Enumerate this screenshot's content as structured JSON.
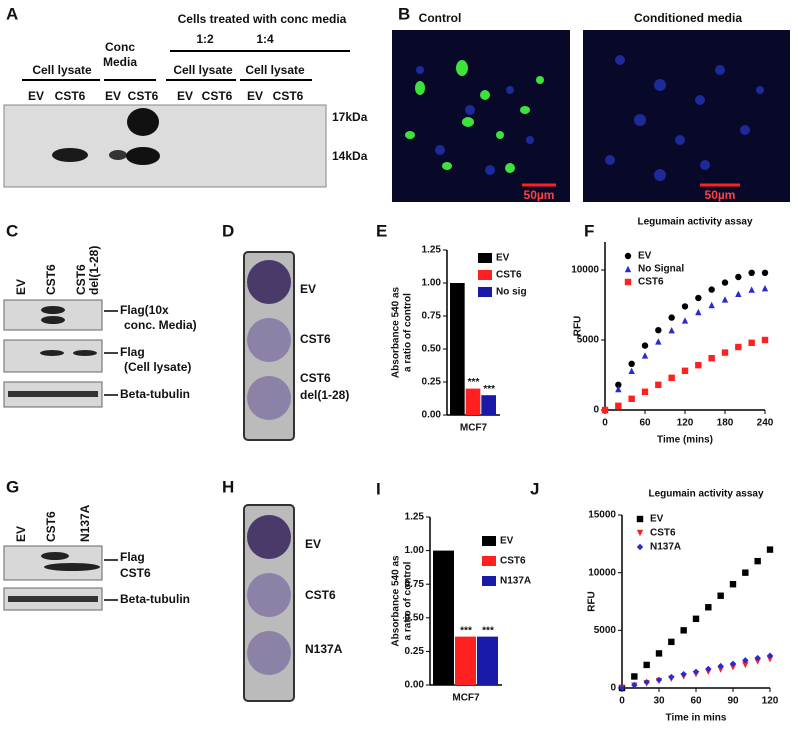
{
  "figure": {
    "a": {
      "label": "A",
      "header": "Cells treated with conc  media",
      "ratios": [
        "1:2",
        "1:4"
      ],
      "groups": [
        "Cell lysate",
        [
          "Conc",
          "Media"
        ],
        "Cell lysate",
        "Cell lysate"
      ],
      "lanes": [
        "EV",
        "CST6",
        "EV",
        "CST6",
        "EV",
        "CST6",
        "EV",
        "CST6"
      ],
      "markers": [
        "17kDa",
        "14kDa"
      ]
    },
    "b": {
      "label": "B",
      "panels": [
        "Control",
        "Conditioned media"
      ],
      "scale": [
        "50µm",
        "50µm"
      ]
    },
    "c": {
      "label": "C",
      "lanes": [
        [
          "EV"
        ],
        [
          "CST6"
        ],
        [
          "CST6",
          "del(1-28)"
        ]
      ],
      "rows": [
        [
          "Flag(10x",
          "conc. Media)"
        ],
        [
          "Flag",
          "(Cell lysate)"
        ],
        [
          "Beta-tubulin"
        ]
      ]
    },
    "d": {
      "label": "D",
      "wells": [
        [
          "EV"
        ],
        [
          "CST6"
        ],
        [
          "CST6",
          "del(1-28)"
        ]
      ]
    },
    "e": {
      "label": "E"
    },
    "f": {
      "label": "F"
    },
    "g": {
      "label": "G",
      "lanes": [
        "EV",
        "CST6",
        "N137A"
      ],
      "rows": [
        [
          "Flag",
          "CST6"
        ],
        [
          "Beta-tubulin"
        ]
      ]
    },
    "h": {
      "label": "H",
      "wells": [
        "EV",
        "CST6",
        "N137A"
      ]
    },
    "i": {
      "label": "I"
    },
    "j": {
      "label": "J"
    }
  },
  "chart_data": [
    {
      "type": "bar",
      "ylabel": [
        "Absorbance 540 as",
        "a ratio of control"
      ],
      "categories": [
        "MCF7"
      ],
      "series": [
        {
          "name": "EV",
          "color": "#000000",
          "values": [
            1.0
          ]
        },
        {
          "name": "CST6",
          "color": "#ff2020",
          "values": [
            0.2
          ]
        },
        {
          "name": "No sig",
          "color": "#1a1aa8",
          "values": [
            0.15
          ]
        }
      ],
      "annotations": [
        "***",
        "***"
      ],
      "ylim": [
        0,
        1.25
      ],
      "yticks": [
        {
          "value": 0,
          "label": "0.00"
        },
        {
          "value": 0.25,
          "label": "0.25"
        },
        {
          "value": 0.5,
          "label": "0.50"
        },
        {
          "value": 0.75,
          "label": "0.75"
        },
        {
          "value": 1,
          "label": "1.00"
        },
        {
          "value": 1.25,
          "label": "1.25"
        }
      ]
    },
    {
      "type": "scatter",
      "title": "Legumain activity assay",
      "xlabel": "Time (mins)",
      "ylabel": [
        "RFU"
      ],
      "x": [
        0,
        20,
        40,
        60,
        80,
        100,
        120,
        140,
        160,
        180,
        200,
        220,
        240
      ],
      "series": [
        {
          "name": "EV",
          "color": "#000000",
          "marker": "circle",
          "values": [
            0,
            1800,
            3300,
            4600,
            5700,
            6600,
            7400,
            8000,
            8600,
            9100,
            9500,
            9800,
            9800
          ]
        },
        {
          "name": "No Signal",
          "color": "#2a2ad0",
          "marker": "triangle",
          "values": [
            0,
            1500,
            2800,
            3900,
            4900,
            5700,
            6400,
            7000,
            7500,
            7900,
            8300,
            8600,
            8700
          ]
        },
        {
          "name": "CST6",
          "color": "#ff2020",
          "marker": "square",
          "values": [
            0,
            300,
            800,
            1300,
            1800,
            2300,
            2800,
            3200,
            3700,
            4100,
            4500,
            4800,
            5000
          ]
        }
      ],
      "xlim": [
        0,
        240
      ],
      "xticks": [
        0,
        60,
        120,
        180,
        240
      ],
      "ylim": [
        0,
        12000
      ],
      "yticks": [
        0,
        5000,
        10000
      ]
    },
    {
      "type": "bar",
      "ylabel": [
        "Absorbance 540 as",
        "a ratio of control"
      ],
      "categories": [
        "MCF7"
      ],
      "series": [
        {
          "name": "EV",
          "color": "#000000",
          "values": [
            1.0
          ]
        },
        {
          "name": "CST6",
          "color": "#ff2020",
          "values": [
            0.36
          ]
        },
        {
          "name": "N137A",
          "color": "#1a1aa8",
          "values": [
            0.36
          ]
        }
      ],
      "annotations": [
        "***",
        "***"
      ],
      "ylim": [
        0,
        1.25
      ],
      "yticks": [
        {
          "value": 0,
          "label": "0.00"
        },
        {
          "value": 0.25,
          "label": "0.25"
        },
        {
          "value": 0.5,
          "label": "0.50"
        },
        {
          "value": 0.75,
          "label": "0.75"
        },
        {
          "value": 1,
          "label": "1.00"
        },
        {
          "value": 1.25,
          "label": "1.25"
        }
      ]
    },
    {
      "type": "scatter",
      "title": "Legumain activity assay",
      "xlabel": "Time in mins",
      "ylabel": [
        "RFU"
      ],
      "x": [
        0,
        10,
        20,
        30,
        40,
        50,
        60,
        70,
        80,
        90,
        100,
        110,
        120
      ],
      "series": [
        {
          "name": "EV",
          "color": "#000000",
          "marker": "square",
          "values": [
            0,
            1000,
            2000,
            3000,
            4000,
            5000,
            6000,
            7000,
            8000,
            9000,
            10000,
            11000,
            12000
          ]
        },
        {
          "name": "CST6",
          "color": "#ff2020",
          "marker": "triangle-down",
          "values": [
            0,
            200,
            400,
            600,
            800,
            1000,
            1200,
            1400,
            1600,
            1800,
            2000,
            2300,
            2500
          ]
        },
        {
          "name": "N137A",
          "color": "#2a2ad0",
          "marker": "diamond",
          "values": [
            0,
            250,
            500,
            700,
            950,
            1200,
            1400,
            1650,
            1900,
            2100,
            2400,
            2600,
            2800
          ]
        }
      ],
      "xlim": [
        0,
        120
      ],
      "xticks": [
        0,
        30,
        60,
        90,
        120
      ],
      "ylim": [
        0,
        15000
      ],
      "yticks": [
        0,
        5000,
        10000,
        15000
      ]
    }
  ]
}
